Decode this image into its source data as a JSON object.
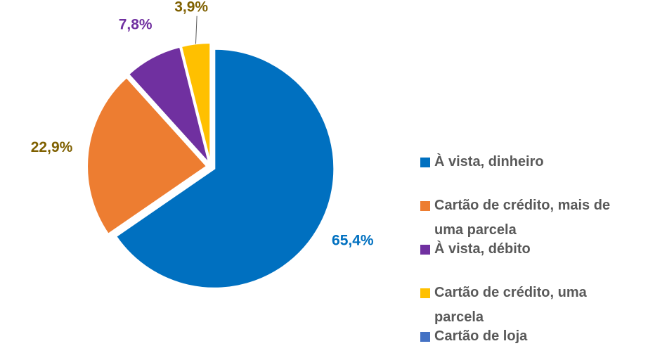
{
  "chart_data": {
    "type": "pie",
    "categories": [
      "À vista, dinheiro",
      "Cartão de crédito, mais de uma parcela",
      "À vista, débito",
      "Cartão de crédito, uma parcela",
      "Cartão de loja"
    ],
    "values": [
      65.4,
      22.9,
      7.8,
      3.9,
      0
    ],
    "value_labels": [
      "65,4%",
      "22,9%",
      "7,8%",
      "3,9%",
      null
    ],
    "colors": [
      "#0070c0",
      "#ed7d31",
      "#7030a0",
      "#ffc000",
      "#4472c4"
    ],
    "label_colors": [
      "#0070c0",
      "#7f6000",
      "#7030a0",
      "#7f6000",
      null
    ],
    "legend": "right"
  }
}
